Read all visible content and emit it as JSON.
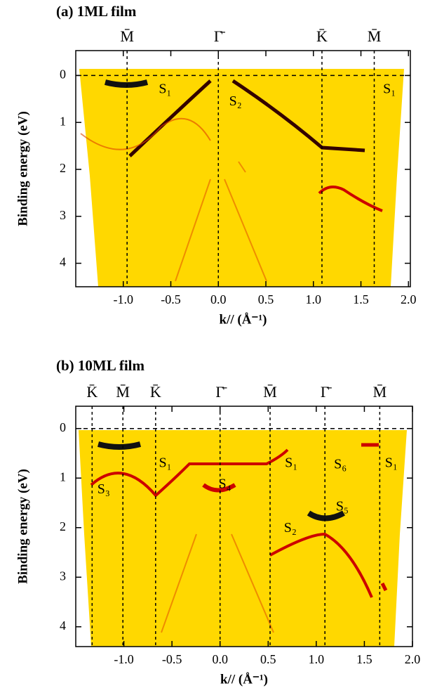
{
  "chart_data": [
    {
      "type": "arpes",
      "title": "(a) 1ML film",
      "xlabel": "k// (Å⁻¹)",
      "ylabel": "Binding energy (eV)",
      "xlim": [
        -1.5,
        2.02
      ],
      "ylim": [
        -0.53,
        4.5
      ],
      "y_inverted": true,
      "xticks": [
        {
          "value": -1,
          "label": "-1.0"
        },
        -0.5,
        {
          "value": 0,
          "label": "0.0"
        },
        0.5,
        {
          "value": 1,
          "label": "1.0"
        },
        1.5,
        {
          "value": 2,
          "label": "2.0"
        }
      ],
      "yticks": [
        0,
        1,
        2,
        3,
        4
      ],
      "hline": 0,
      "symmetry_points": [
        {
          "label": "M̄",
          "k": -0.96
        },
        {
          "label": "Γ̄",
          "k": 0
        },
        {
          "label": "K̄",
          "k": 1.09
        },
        {
          "label": "M̄",
          "k": 1.64
        }
      ],
      "annotations": [
        {
          "text": "S₁",
          "k": -0.56,
          "e": 0.31
        },
        {
          "text": "S₂",
          "k": 0.18,
          "e": 0.57
        },
        {
          "text": "S₁",
          "k": 1.8,
          "e": 0.31
        }
      ]
    },
    {
      "type": "arpes",
      "title": "(b) 10ML film",
      "xlabel": "k// (Å⁻¹)",
      "ylabel": "Binding energy (eV)",
      "xlim": [
        -1.5,
        2.0
      ],
      "ylim": [
        -0.45,
        4.4
      ],
      "y_inverted": true,
      "xticks": [
        {
          "value": -1,
          "label": "-1.0"
        },
        -0.5,
        {
          "value": 0,
          "label": "0.0"
        },
        0.5,
        {
          "value": 1,
          "label": "1.0"
        },
        1.5,
        {
          "value": 2,
          "label": "2.0"
        }
      ],
      "yticks": [
        0,
        1,
        2,
        3,
        4
      ],
      "hline": 0,
      "symmetry_points": [
        {
          "label": "K̄",
          "k": -1.33
        },
        {
          "label": "M̄",
          "k": -1.01
        },
        {
          "label": "K̄",
          "k": -0.67
        },
        {
          "label": "Γ̄",
          "k": 0
        },
        {
          "label": "M̄",
          "k": 0.52
        },
        {
          "label": "Γ̄",
          "k": 1.09
        },
        {
          "label": "M̄",
          "k": 1.66
        }
      ],
      "annotations": [
        {
          "text": "S₁",
          "k": -0.57,
          "e": 0.71
        },
        {
          "text": "S₃",
          "k": -1.21,
          "e": 1.24
        },
        {
          "text": "S₄",
          "k": 0.05,
          "e": 1.14
        },
        {
          "text": "S₁",
          "k": 0.74,
          "e": 0.71
        },
        {
          "text": "S₆",
          "k": 1.25,
          "e": 0.74
        },
        {
          "text": "S₅",
          "k": 1.27,
          "e": 1.59
        },
        {
          "text": "S₂",
          "k": 0.73,
          "e": 2.02
        },
        {
          "text": "S₁",
          "k": 1.78,
          "e": 0.71
        }
      ]
    }
  ]
}
